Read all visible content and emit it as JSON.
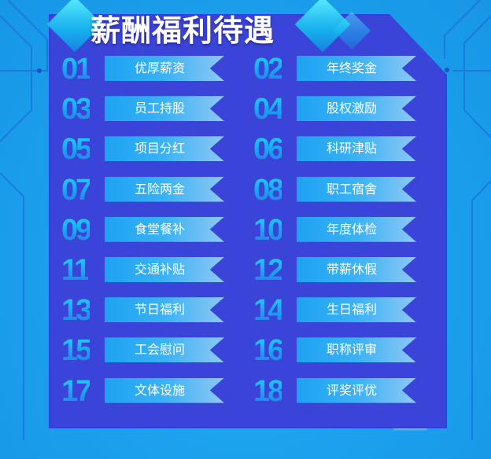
{
  "title": "薪酬福利待遇",
  "items": [
    {
      "num": "01",
      "label": "优厚薪资"
    },
    {
      "num": "02",
      "label": "年终奖金"
    },
    {
      "num": "03",
      "label": "员工持股"
    },
    {
      "num": "04",
      "label": "股权激励"
    },
    {
      "num": "05",
      "label": "项目分红"
    },
    {
      "num": "06",
      "label": "科研津贴"
    },
    {
      "num": "07",
      "label": "五险两金"
    },
    {
      "num": "08",
      "label": "职工宿舍"
    },
    {
      "num": "09",
      "label": "食堂餐补"
    },
    {
      "num": "10",
      "label": "年度体检"
    },
    {
      "num": "11",
      "label": "交通补贴"
    },
    {
      "num": "12",
      "label": "带薪休假"
    },
    {
      "num": "13",
      "label": "节日福利"
    },
    {
      "num": "14",
      "label": "生日福利"
    },
    {
      "num": "15",
      "label": "工会慰问"
    },
    {
      "num": "16",
      "label": "职称评审"
    },
    {
      "num": "17",
      "label": "文体设施"
    },
    {
      "num": "18",
      "label": "评奖评优"
    }
  ],
  "colors": {
    "background": "#1ba3ef",
    "panel": "#3b44d8",
    "ribbon": "#3ab2f5",
    "number": "#1fd8ff"
  }
}
